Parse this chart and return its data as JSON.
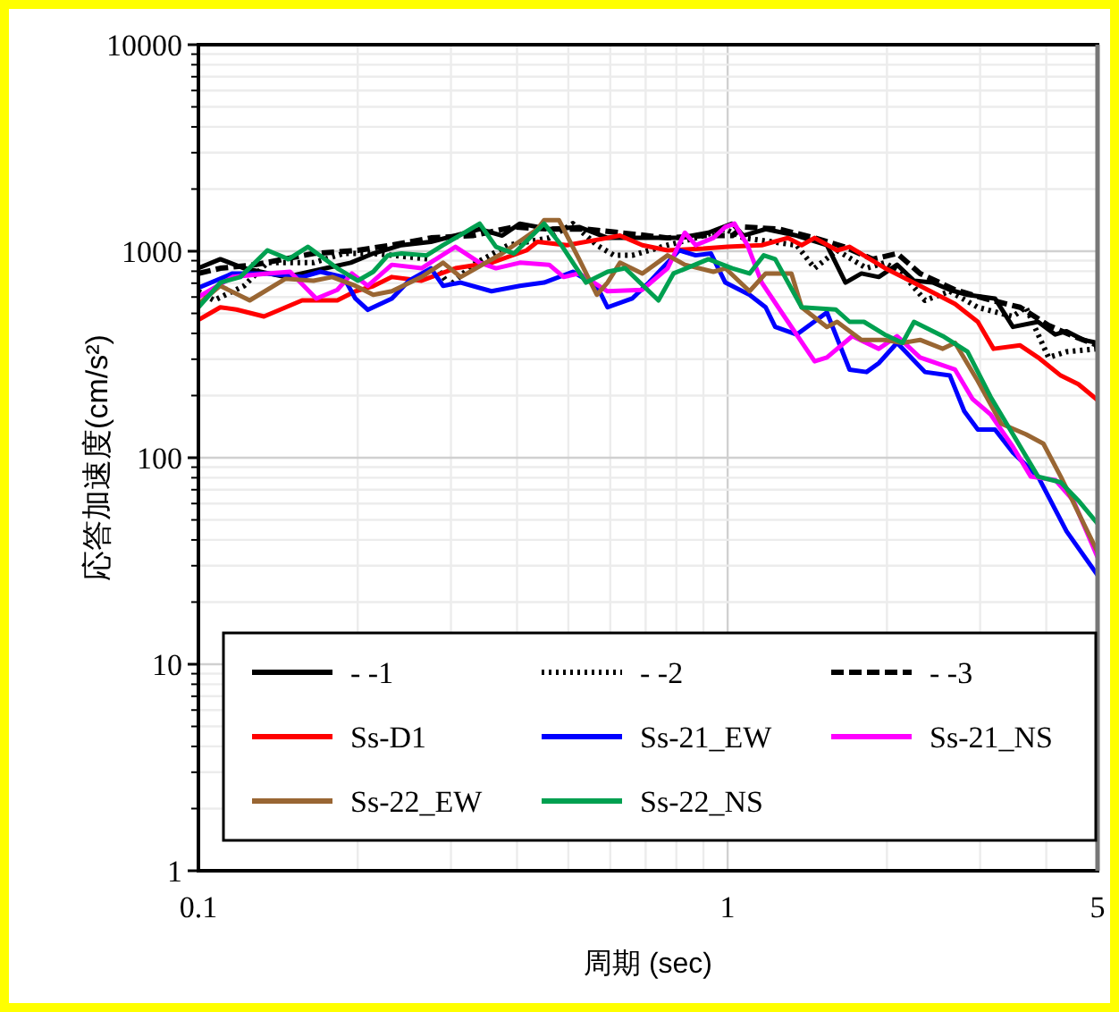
{
  "chart_data": {
    "type": "line",
    "xlabel": "周期 (sec)",
    "ylabel": "応答加速度(cm/s²)",
    "log": "xy",
    "xlim": [
      0.1,
      5
    ],
    "xticks": [
      0.1,
      1,
      5
    ],
    "ylim": [
      1,
      10000
    ],
    "yticks": [
      1,
      10,
      100,
      1000,
      10000
    ],
    "grid": true,
    "legend": "bottom",
    "series": [
      {
        "name": "- -1",
        "color": "#000000",
        "line_style": "solid",
        "x": [
          0.1,
          0.11,
          0.122,
          0.146,
          0.174,
          0.194,
          0.214,
          0.242,
          0.275,
          0.306,
          0.34,
          0.375,
          0.405,
          0.46,
          0.524,
          0.593,
          0.69,
          0.81,
          0.92,
          1.02,
          1.07,
          1.18,
          1.35,
          1.54,
          1.67,
          1.79,
          1.93,
          2.09,
          2.25,
          2.44,
          2.63,
          2.84,
          3.2,
          3.46,
          3.86,
          4.16,
          4.37,
          4.7,
          5
        ],
        "values": [
          827,
          915,
          827,
          750,
          827,
          880,
          975,
          1070,
          1110,
          1190,
          1280,
          1190,
          1360,
          1280,
          1310,
          1160,
          1160,
          1160,
          1230,
          1360,
          1190,
          1280,
          1190,
          1070,
          705,
          780,
          750,
          860,
          720,
          705,
          650,
          615,
          590,
          430,
          455,
          395,
          410,
          372,
          360
        ]
      },
      {
        "name": "- -2",
        "color": "#000000",
        "line_style": "dotted",
        "x": [
          0.1,
          0.107,
          0.122,
          0.135,
          0.165,
          0.188,
          0.214,
          0.275,
          0.298,
          0.33,
          0.385,
          0.46,
          0.51,
          0.566,
          0.61,
          0.66,
          0.77,
          0.87,
          0.99,
          1.07,
          1.35,
          1.46,
          1.61,
          1.83,
          1.98,
          2.14,
          2.36,
          2.63,
          2.97,
          3.46,
          3.66,
          4.04,
          4.37,
          5
        ],
        "values": [
          640,
          578,
          680,
          880,
          880,
          975,
          975,
          915,
          680,
          860,
          1070,
          1160,
          1360,
          1070,
          955,
          955,
          1070,
          1160,
          1280,
          1160,
          1070,
          827,
          1010,
          827,
          880,
          780,
          578,
          640,
          535,
          483,
          535,
          306,
          326,
          337
        ]
      },
      {
        "name": "- -3",
        "color": "#000000",
        "line_style": "dashed",
        "x": [
          0.1,
          0.11,
          0.128,
          0.165,
          0.2,
          0.232,
          0.275,
          0.33,
          0.395,
          0.46,
          0.54,
          0.626,
          0.77,
          0.9,
          1.02,
          1.07,
          1.25,
          1.46,
          1.66,
          1.88,
          2.09,
          2.31,
          2.69,
          3.06,
          3.57,
          4.04,
          4.5,
          5
        ],
        "values": [
          780,
          827,
          860,
          975,
          1010,
          1070,
          1160,
          1190,
          1310,
          1280,
          1280,
          1230,
          1160,
          1190,
          1190,
          1310,
          1280,
          1160,
          1050,
          915,
          975,
          780,
          650,
          590,
          535,
          437,
          388,
          350
        ]
      },
      {
        "name": "Ss-D1",
        "color": "#ff0000",
        "line_style": "solid",
        "x": [
          0.1,
          0.11,
          0.118,
          0.133,
          0.157,
          0.183,
          0.198,
          0.214,
          0.232,
          0.264,
          0.306,
          0.358,
          0.417,
          0.437,
          0.497,
          0.593,
          0.626,
          0.69,
          0.77,
          0.9,
          1.0,
          1.16,
          1.3,
          1.38,
          1.46,
          1.61,
          1.7,
          1.98,
          2.31,
          2.69,
          2.97,
          3.18,
          3.57,
          3.86,
          4.26,
          4.6,
          5
        ],
        "values": [
          465,
          535,
          522,
          483,
          578,
          578,
          640,
          678,
          750,
          720,
          827,
          880,
          1010,
          1110,
          1070,
          1160,
          1190,
          1070,
          1010,
          1030,
          1050,
          1070,
          1160,
          1070,
          1160,
          1010,
          1050,
          830,
          680,
          555,
          455,
          337,
          350,
          306,
          250,
          227,
          190
        ]
      },
      {
        "name": "Ss-21_EW",
        "color": "#0000ff",
        "line_style": "solid",
        "x": [
          0.1,
          0.116,
          0.135,
          0.157,
          0.17,
          0.188,
          0.198,
          0.209,
          0.232,
          0.25,
          0.275,
          0.29,
          0.313,
          0.358,
          0.405,
          0.45,
          0.51,
          0.566,
          0.593,
          0.66,
          0.71,
          0.81,
          0.87,
          0.93,
          0.99,
          1.1,
          1.18,
          1.23,
          1.35,
          1.54,
          1.7,
          1.83,
          1.93,
          2.09,
          2.36,
          2.63,
          2.8,
          2.97,
          3.2,
          3.46,
          3.86,
          4.37,
          5
        ],
        "values": [
          665,
          780,
          780,
          750,
          795,
          750,
          590,
          520,
          590,
          720,
          827,
          680,
          705,
          640,
          680,
          705,
          795,
          680,
          535,
          590,
          705,
          1010,
          955,
          975,
          705,
          615,
          535,
          430,
          395,
          505,
          267,
          260,
          287,
          360,
          260,
          250,
          168,
          137,
          137,
          106,
          81,
          44,
          27
        ]
      },
      {
        "name": "Ss-21_NS",
        "color": "#ff00ff",
        "line_style": "solid",
        "x": [
          0.1,
          0.116,
          0.135,
          0.149,
          0.167,
          0.183,
          0.195,
          0.209,
          0.232,
          0.264,
          0.306,
          0.34,
          0.365,
          0.405,
          0.46,
          0.49,
          0.524,
          0.593,
          0.69,
          0.77,
          0.83,
          0.87,
          0.94,
          0.99,
          1.03,
          1.09,
          1.16,
          1.28,
          1.46,
          1.54,
          1.72,
          1.93,
          2.09,
          2.31,
          2.69,
          2.9,
          3.14,
          3.46,
          3.74,
          4.16,
          4.5,
          5
        ],
        "values": [
          600,
          750,
          780,
          795,
          590,
          650,
          780,
          680,
          860,
          827,
          1050,
          880,
          827,
          880,
          860,
          750,
          780,
          640,
          650,
          827,
          1230,
          1070,
          1160,
          1310,
          1360,
          1070,
          705,
          483,
          293,
          306,
          388,
          337,
          388,
          306,
          267,
          193,
          162,
          113,
          81,
          78,
          62,
          33
        ]
      },
      {
        "name": "Ss-22_EW",
        "color": "#996633",
        "line_style": "solid",
        "x": [
          0.1,
          0.11,
          0.125,
          0.146,
          0.165,
          0.179,
          0.198,
          0.214,
          0.232,
          0.264,
          0.29,
          0.313,
          0.375,
          0.437,
          0.45,
          0.48,
          0.524,
          0.566,
          0.593,
          0.626,
          0.69,
          0.77,
          0.83,
          0.94,
          0.99,
          1.1,
          1.18,
          1.32,
          1.38,
          1.54,
          1.61,
          1.79,
          1.98,
          2.14,
          2.31,
          2.55,
          2.69,
          2.97,
          3.29,
          3.66,
          3.95,
          4.26,
          5
        ],
        "values": [
          555,
          680,
          578,
          735,
          720,
          750,
          680,
          615,
          640,
          750,
          880,
          750,
          975,
          1280,
          1415,
          1415,
          915,
          615,
          705,
          880,
          780,
          955,
          860,
          795,
          827,
          640,
          780,
          780,
          535,
          430,
          455,
          372,
          372,
          360,
          372,
          337,
          360,
          235,
          146,
          130,
          117,
          81,
          35
        ]
      },
      {
        "name": "Ss-22_NS",
        "color": "#00a050",
        "line_style": "solid",
        "x": [
          0.1,
          0.11,
          0.12,
          0.135,
          0.148,
          0.161,
          0.183,
          0.2,
          0.214,
          0.228,
          0.242,
          0.27,
          0.29,
          0.34,
          0.365,
          0.395,
          0.45,
          0.485,
          0.54,
          0.593,
          0.64,
          0.74,
          0.79,
          0.92,
          1.02,
          1.1,
          1.17,
          1.23,
          1.38,
          1.6,
          1.7,
          1.81,
          1.98,
          2.14,
          2.25,
          2.55,
          2.84,
          3.14,
          3.46,
          3.86,
          4.26,
          4.6,
          5
        ],
        "values": [
          535,
          705,
          750,
          1010,
          915,
          1050,
          827,
          720,
          795,
          955,
          975,
          955,
          1070,
          1360,
          1050,
          975,
          1360,
          1070,
          705,
          795,
          827,
          578,
          780,
          915,
          827,
          780,
          955,
          915,
          535,
          522,
          455,
          455,
          395,
          360,
          455,
          388,
          326,
          197,
          130,
          81,
          76,
          62,
          48
        ]
      }
    ]
  }
}
